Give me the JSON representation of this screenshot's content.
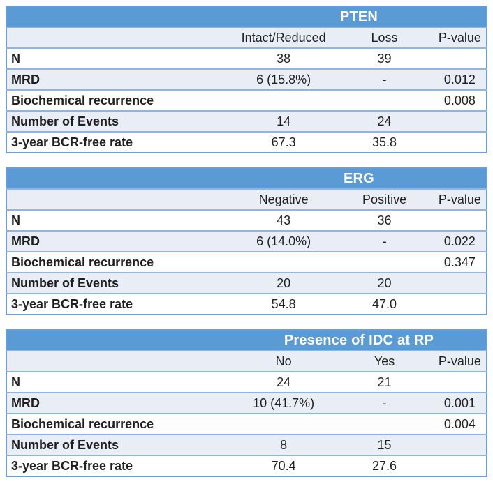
{
  "colors": {
    "title_bar_bg": "#5b9bd5",
    "title_text": "#ffffff",
    "banded_row_bg": "#e9edf6",
    "row_border": "#8fb6e2",
    "outer_border": "#6f9ed6",
    "body_text": "#1f1f1f"
  },
  "tables": [
    {
      "title": "PTEN",
      "columns": [
        "Intact/Reduced",
        "Loss",
        "P-value"
      ],
      "rows": [
        {
          "label": "N",
          "values": [
            "38",
            "39",
            ""
          ]
        },
        {
          "label": "MRD",
          "values": [
            "6 (15.8%)",
            "-",
            "0.012"
          ]
        },
        {
          "label": "Biochemical recurrence",
          "values": [
            "",
            "",
            "0.008"
          ]
        },
        {
          "label": "Number of Events",
          "values": [
            "14",
            "24",
            ""
          ]
        },
        {
          "label": "3-year BCR-free rate",
          "values": [
            "67.3",
            "35.8",
            ""
          ]
        }
      ]
    },
    {
      "title": "ERG",
      "columns": [
        "Negative",
        "Positive",
        "P-value"
      ],
      "rows": [
        {
          "label": "N",
          "values": [
            "43",
            "36",
            ""
          ]
        },
        {
          "label": "MRD",
          "values": [
            "6 (14.0%)",
            "-",
            "0.022"
          ]
        },
        {
          "label": "Biochemical recurrence",
          "values": [
            "",
            "",
            "0.347"
          ]
        },
        {
          "label": "Number of Events",
          "values": [
            "20",
            "20",
            ""
          ]
        },
        {
          "label": "3-year BCR-free rate",
          "values": [
            "54.8",
            "47.0",
            ""
          ]
        }
      ]
    },
    {
      "title": "Presence of IDC at RP",
      "columns": [
        "No",
        "Yes",
        "P-value"
      ],
      "rows": [
        {
          "label": "N",
          "values": [
            "24",
            "21",
            ""
          ]
        },
        {
          "label": "MRD",
          "values": [
            "10 (41.7%)",
            "-",
            "0.001"
          ]
        },
        {
          "label": "Biochemical recurrence",
          "values": [
            "",
            "",
            "0.004"
          ]
        },
        {
          "label": "Number of Events",
          "values": [
            "8",
            "15",
            ""
          ]
        },
        {
          "label": "3-year BCR-free rate",
          "values": [
            "70.4",
            "27.6",
            ""
          ]
        }
      ]
    }
  ]
}
